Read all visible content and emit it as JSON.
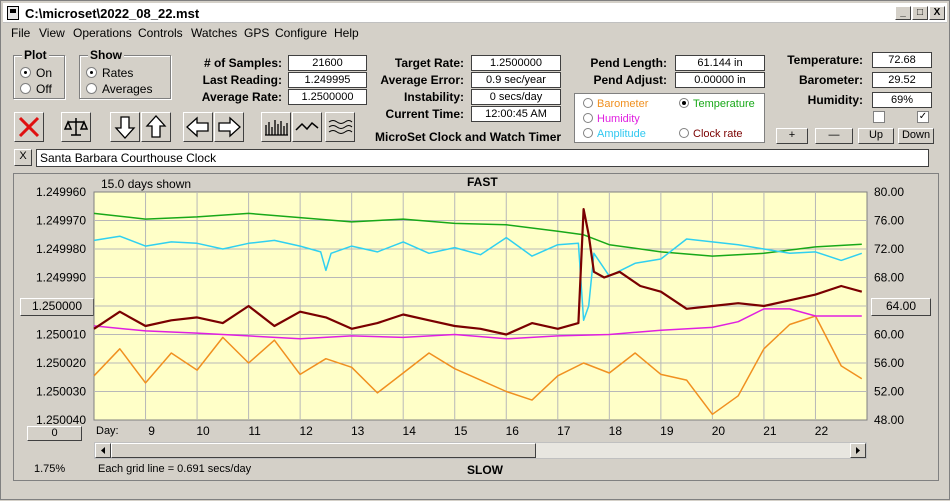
{
  "window": {
    "title": "C:\\microset\\2022_08_22.mst",
    "minimize": "_",
    "maximize": "□",
    "close": "X"
  },
  "menu": [
    "File",
    "View",
    "Operations",
    "Controls",
    "Watches",
    "GPS",
    "Configure",
    "Help"
  ],
  "plot_group": {
    "title": "Plot",
    "on": "On",
    "off": "Off",
    "selected": "On"
  },
  "show_group": {
    "title": "Show",
    "rates": "Rates",
    "averages": "Averages",
    "selected": "Rates"
  },
  "stats": {
    "samples_label": "# of Samples:",
    "samples": "21600",
    "last_label": "Last Reading:",
    "last": "1.249995",
    "avg_label": "Average Rate:",
    "avg": "1.2500000",
    "target_label": "Target Rate:",
    "target": "1.2500000",
    "error_label": "Average Error:",
    "error": "0.9 sec/year",
    "instab_label": "Instability:",
    "instab": "0 secs/day",
    "time_label": "Current Time:",
    "time": "12:00:45 AM",
    "pend_len_label": "Pend Length:",
    "pend_len": "61.144 in",
    "pend_adj_label": "Pend Adjust:",
    "pend_adj": "0.00000 in",
    "temp_label": "Temperature:",
    "temp": "72.68",
    "baro_label": "Barometer:",
    "baro": "29.52",
    "hum_label": "Humidity:",
    "hum": "69%"
  },
  "app_caption": "MicroSet Clock and Watch Timer",
  "legend": {
    "barometer": "Barometer",
    "temperature": "Temperature",
    "humidity": "Humidity",
    "amplitude": "Amplitude",
    "clock_rate": "Clock rate",
    "selected": "Temperature"
  },
  "right_buttons": {
    "plus": "+",
    "minus": "—",
    "up": "Up",
    "down": "Down"
  },
  "clock_name": "Santa Barbara Courthouse Clock",
  "clock_clear": "X",
  "colors": {
    "plot_bg": "#ffffc8",
    "grid": "#b8b8b8",
    "rate": "#7a0000",
    "temperature": "#18a818",
    "amplitude": "#30d0f0",
    "humidity": "#e020e0",
    "barometer": "#f09020"
  },
  "chart_data": {
    "type": "line",
    "top_label": "FAST",
    "bottom_label": "SLOW",
    "days_shown": "15.0 days shown",
    "grid_note": "Each grid line = 0.691 secs/day",
    "zoom": "1.75%",
    "x_label": "Day:",
    "x_ticks": [
      9,
      10,
      11,
      12,
      13,
      14,
      15,
      16,
      17,
      18,
      19,
      20,
      21,
      22
    ],
    "xlim": [
      8.0,
      23.0
    ],
    "left_axis": {
      "ticks": [
        "1.249960",
        "1.249970",
        "1.249980",
        "1.249990",
        "1.250000",
        "1.250010",
        "1.250020",
        "1.250030",
        "1.250040"
      ],
      "center_button": "1.250000",
      "ylim": [
        1.24996,
        1.25004
      ]
    },
    "right_axis": {
      "ticks": [
        "80.00",
        "76.00",
        "72.00",
        "68.00",
        "64.00",
        "60.00",
        "56.00",
        "52.00",
        "48.00"
      ],
      "center_button": "64.00",
      "ylim": [
        48,
        80
      ]
    },
    "offset_button": "0",
    "series": [
      {
        "name": "Clock rate",
        "axis": "left",
        "x": [
          8.0,
          8.5,
          9.0,
          9.5,
          10.0,
          10.5,
          11.0,
          11.5,
          12.0,
          12.5,
          13.0,
          13.5,
          14.0,
          14.5,
          15.0,
          15.5,
          16.0,
          16.5,
          17.0,
          17.4,
          17.5,
          17.6,
          17.7,
          17.9,
          18.2,
          18.6,
          19.0,
          19.5,
          20.0,
          20.5,
          21.0,
          21.5,
          22.0,
          22.5,
          22.9
        ],
        "y": [
          1.250008,
          1.250002,
          1.250007,
          1.250005,
          1.250004,
          1.250006,
          1.25,
          1.250007,
          1.250002,
          1.250004,
          1.250008,
          1.250006,
          1.250003,
          1.250005,
          1.250007,
          1.250008,
          1.25001,
          1.250006,
          1.250008,
          1.250006,
          1.249966,
          1.249975,
          1.249988,
          1.24999,
          1.249988,
          1.249993,
          1.249995,
          1.250001,
          1.25,
          1.249999,
          1.25,
          1.249998,
          1.249996,
          1.249993,
          1.249995
        ]
      },
      {
        "name": "Temperature",
        "axis": "right",
        "x": [
          8.0,
          9.0,
          10.0,
          11.0,
          12.0,
          13.0,
          14.0,
          15.0,
          16.0,
          17.0,
          17.5,
          18.0,
          19.0,
          20.0,
          21.0,
          22.0,
          22.9
        ],
        "y": [
          77.0,
          76.2,
          76.5,
          77.0,
          76.4,
          75.8,
          76.2,
          75.6,
          75.4,
          74.5,
          74.0,
          72.6,
          71.6,
          71.0,
          71.4,
          72.3,
          72.68
        ]
      },
      {
        "name": "Amplitude",
        "axis": "right",
        "x": [
          8.0,
          8.5,
          9.0,
          9.5,
          10.0,
          10.5,
          11.0,
          11.5,
          12.0,
          12.4,
          12.5,
          12.6,
          13.0,
          13.5,
          14.0,
          14.5,
          15.0,
          15.5,
          16.0,
          16.5,
          17.0,
          17.4,
          17.5,
          17.6,
          17.7,
          18.0,
          18.5,
          19.0,
          19.5,
          20.0,
          20.5,
          21.0,
          21.5,
          22.0,
          22.5,
          22.9
        ],
        "y": [
          73.2,
          73.8,
          72.4,
          73.0,
          72.8,
          72.0,
          72.8,
          73.2,
          72.4,
          71.6,
          69.0,
          71.4,
          72.4,
          71.6,
          73.0,
          71.4,
          72.2,
          71.2,
          73.6,
          71.0,
          72.6,
          72.8,
          62.0,
          64.0,
          71.4,
          68.2,
          70.0,
          70.6,
          73.4,
          73.0,
          72.6,
          72.0,
          71.4,
          71.6,
          70.4,
          71.4
        ]
      },
      {
        "name": "Humidity",
        "axis": "right",
        "x": [
          8.0,
          9.0,
          10.0,
          11.0,
          12.0,
          13.0,
          14.0,
          15.0,
          16.0,
          17.0,
          18.0,
          19.0,
          20.0,
          20.5,
          21.0,
          21.5,
          22.0,
          22.9
        ],
        "y": [
          61.2,
          60.5,
          60.2,
          59.8,
          59.4,
          59.8,
          59.6,
          60.0,
          59.4,
          59.8,
          60.0,
          60.6,
          61.0,
          61.8,
          63.6,
          63.6,
          62.6,
          62.6
        ]
      },
      {
        "name": "Barometer",
        "axis": "right",
        "x": [
          8.0,
          8.5,
          9.0,
          9.5,
          10.0,
          10.5,
          11.0,
          11.5,
          12.0,
          12.5,
          13.0,
          13.5,
          14.0,
          14.5,
          15.0,
          15.5,
          16.0,
          16.5,
          17.0,
          17.5,
          18.0,
          18.5,
          19.0,
          19.5,
          20.0,
          20.5,
          21.0,
          21.5,
          22.0,
          22.5,
          22.9
        ],
        "y": [
          54.2,
          58.0,
          53.2,
          57.4,
          55.0,
          59.6,
          56.0,
          59.2,
          54.4,
          56.6,
          55.4,
          51.8,
          54.6,
          57.4,
          55.2,
          53.6,
          52.0,
          50.8,
          54.2,
          56.0,
          54.6,
          57.4,
          54.4,
          53.6,
          48.8,
          51.4,
          58.0,
          61.4,
          62.6,
          55.6,
          53.8
        ]
      }
    ]
  }
}
